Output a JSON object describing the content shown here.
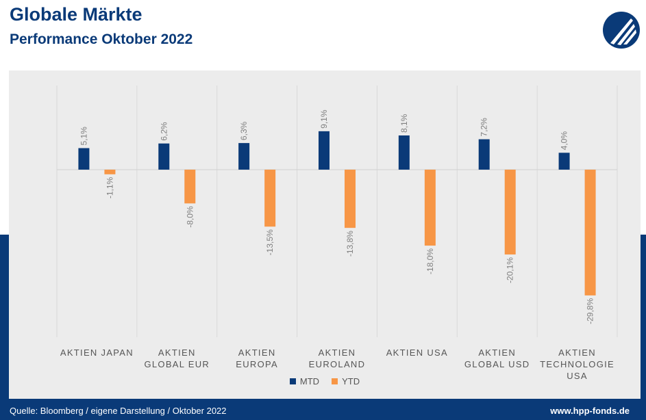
{
  "header": {
    "title": "Globale Märkte",
    "subtitle": "Performance Oktober 2022"
  },
  "footer": {
    "source": "Quelle: Bloomberg / eigene Darstellung / Oktober 2022",
    "website": "www.hpp-fonds.de"
  },
  "colors": {
    "brand_blue": "#0a3a78",
    "mtd": "#0a3a78",
    "ytd": "#f79646",
    "panel": "#ececec"
  },
  "logo": {
    "icon": "hpp-logo-icon"
  },
  "chart_data": {
    "type": "bar",
    "categories": [
      "AKTIEN JAPAN",
      "AKTIEN GLOBAL EUR",
      "AKTIEN EUROPA",
      "AKTIEN EUROLAND",
      "AKTIEN USA",
      "AKTIEN GLOBAL USD",
      "AKTIEN TECHNOLOGIE USA"
    ],
    "series": [
      {
        "name": "MTD",
        "values": [
          5.1,
          6.2,
          6.3,
          9.1,
          8.1,
          7.2,
          4.0
        ],
        "labels": [
          "5,1%",
          "6,2%",
          "6,3%",
          "9,1%",
          "8,1%",
          "7,2%",
          "4,0%"
        ]
      },
      {
        "name": "YTD",
        "values": [
          -1.1,
          -8.0,
          -13.5,
          -13.8,
          -18.0,
          -20.1,
          -29.8
        ],
        "labels": [
          "-1,1%",
          "-8,0%",
          "-13,5%",
          "-13,8%",
          "-18,0%",
          "-20,1%",
          "-29,8%"
        ]
      }
    ],
    "ylim": [
      -40,
      20
    ],
    "legend_position": "bottom",
    "grid": false,
    "label_rotation": "vertical"
  }
}
